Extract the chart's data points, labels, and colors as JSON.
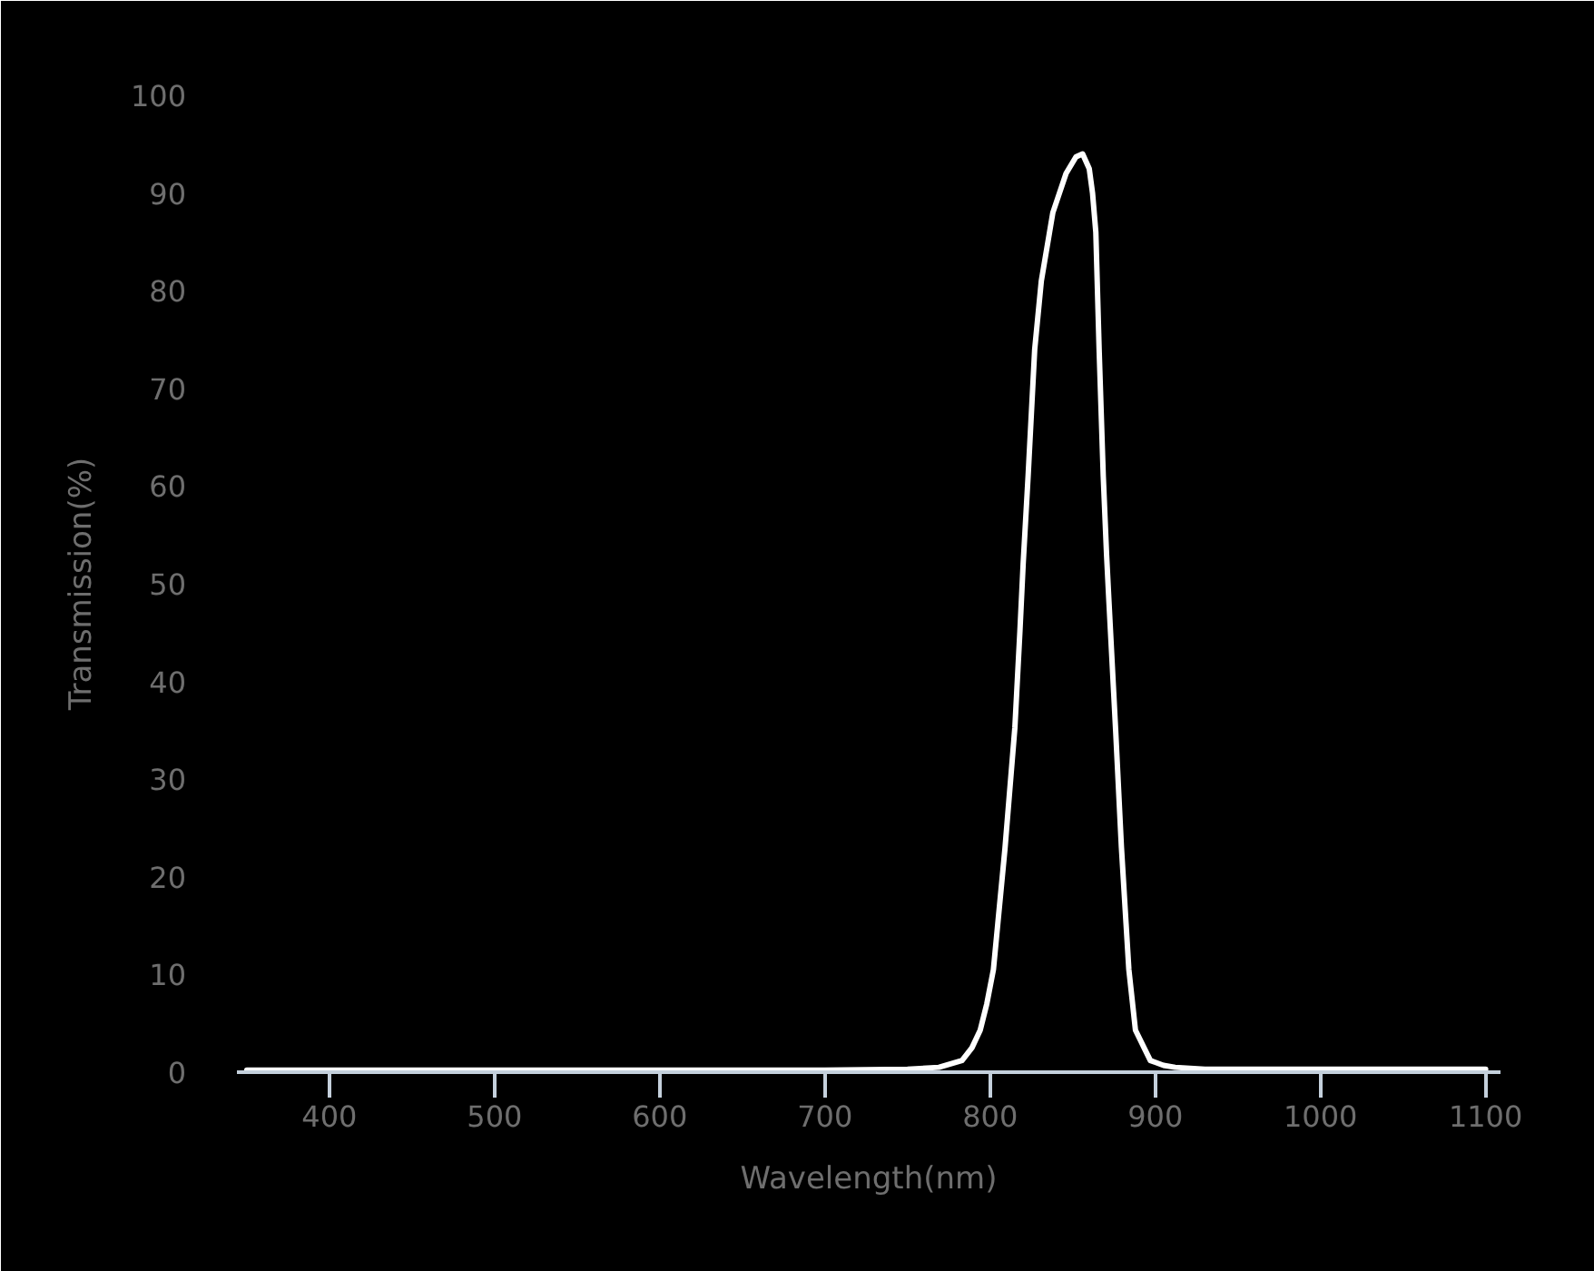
{
  "chart_data": {
    "type": "line",
    "xlabel": "Wavelength(nm)",
    "ylabel": "Transmission(%)",
    "x": [
      350,
      400,
      500,
      600,
      700,
      750,
      769,
      783,
      789,
      794,
      798,
      802,
      809,
      815,
      818,
      820,
      823,
      827,
      831,
      838,
      846,
      852,
      856,
      860,
      862,
      864,
      866,
      868.5,
      870.5,
      872,
      876,
      879.5,
      884,
      888,
      897,
      905,
      912,
      930,
      1000,
      1100
    ],
    "series": [
      {
        "color": "#ffffff",
        "values": [
          0.2,
          0.2,
          0.2,
          0.2,
          0.2,
          0.3,
          0.5,
          1.2,
          2.5,
          4.3,
          7,
          10.5,
          22.9,
          35.3,
          45,
          52,
          61,
          74,
          81,
          88,
          92,
          93.7,
          94,
          92.5,
          90,
          86,
          74,
          61,
          53,
          48,
          35,
          23,
          10.5,
          4.3,
          1.2,
          0.7,
          0.5,
          0.3,
          0.3,
          0.3
        ]
      }
    ],
    "xlim": [
      344,
      1109
    ],
    "ylim": [
      0,
      100
    ],
    "xticks": [
      400,
      500,
      600,
      700,
      800,
      900,
      1000,
      1100
    ],
    "yticks": [
      0,
      10,
      20,
      30,
      40,
      50,
      60,
      70,
      80,
      90,
      100
    ],
    "line_style": "solid"
  }
}
